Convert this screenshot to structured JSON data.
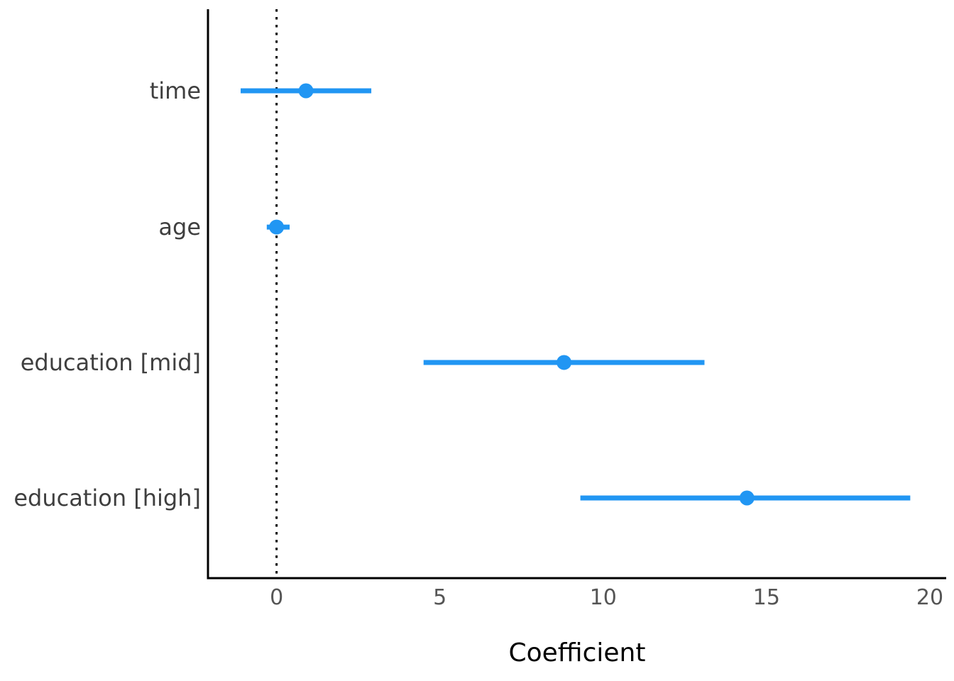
{
  "chart_data": {
    "type": "scatter",
    "subtype": "coefficient-dot-whisker",
    "title": "",
    "xlabel": "Coefficient",
    "ylabel": "",
    "xlim": [
      -2.1,
      20.5
    ],
    "x_ticks": [
      0,
      5,
      10,
      15,
      20
    ],
    "grid": false,
    "legend": null,
    "reference_line_x": 0,
    "categories": [
      "time",
      "age",
      "education [mid]",
      "education [high]"
    ],
    "points": [
      {
        "label": "time",
        "estimate": 0.9,
        "ci_low": -1.1,
        "ci_high": 2.9
      },
      {
        "label": "age",
        "estimate": 0.0,
        "ci_low": -0.3,
        "ci_high": 0.4
      },
      {
        "label": "education [mid]",
        "estimate": 8.8,
        "ci_low": 4.5,
        "ci_high": 13.1
      },
      {
        "label": "education [high]",
        "estimate": 14.4,
        "ci_low": 9.3,
        "ci_high": 19.4
      }
    ],
    "colors": {
      "marker": "#2196F3",
      "ci_line": "#2196F3",
      "reference_line": "#000000",
      "axis_spine": "#000000",
      "tick_label": "#555555",
      "category_label": "#3f3f3f",
      "background": "#ffffff"
    }
  }
}
